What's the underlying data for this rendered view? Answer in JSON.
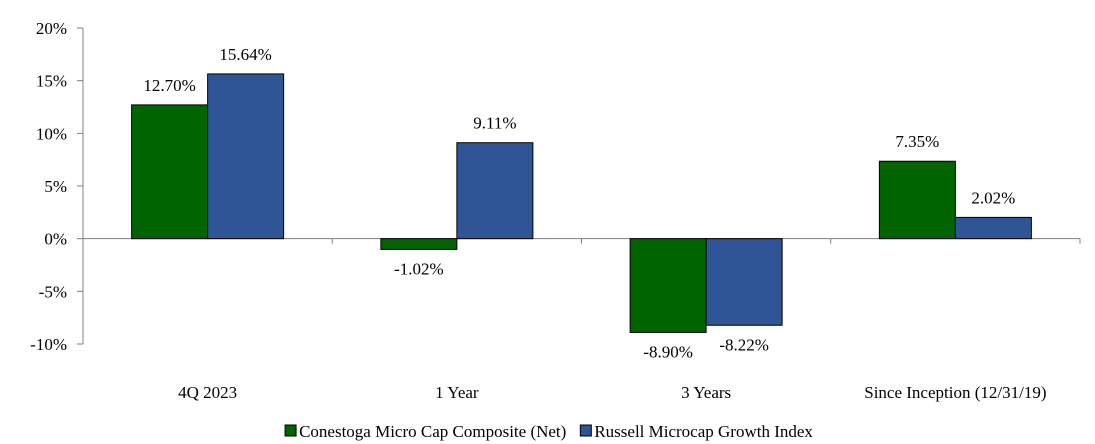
{
  "chart_data": {
    "type": "bar",
    "title": "",
    "xlabel": "",
    "ylabel": "",
    "categories": [
      "4Q 2023",
      "1 Year",
      "3 Years",
      "Since Inception (12/31/19)"
    ],
    "series": [
      {
        "name": "Conestoga Micro Cap Composite (Net)",
        "color": "#006400",
        "values": [
          12.7,
          -1.02,
          -8.9,
          7.35
        ],
        "labels": [
          "12.70%",
          "-1.02%",
          "-8.90%",
          "7.35%"
        ]
      },
      {
        "name": "Russell Microcap Growth Index",
        "color": "#2F5597",
        "values": [
          15.64,
          9.11,
          -8.22,
          2.02
        ],
        "labels": [
          "15.64%",
          "9.11%",
          "-8.22%",
          "2.02%"
        ]
      }
    ],
    "ylim": [
      -10,
      20
    ],
    "yticks": [
      20,
      15,
      10,
      5,
      0,
      -5,
      -10
    ],
    "ytick_labels": [
      "20%",
      "15%",
      "10%",
      "5%",
      "0%",
      "-5%",
      "-10%"
    ],
    "grid": false,
    "legend_position": "bottom-center"
  }
}
